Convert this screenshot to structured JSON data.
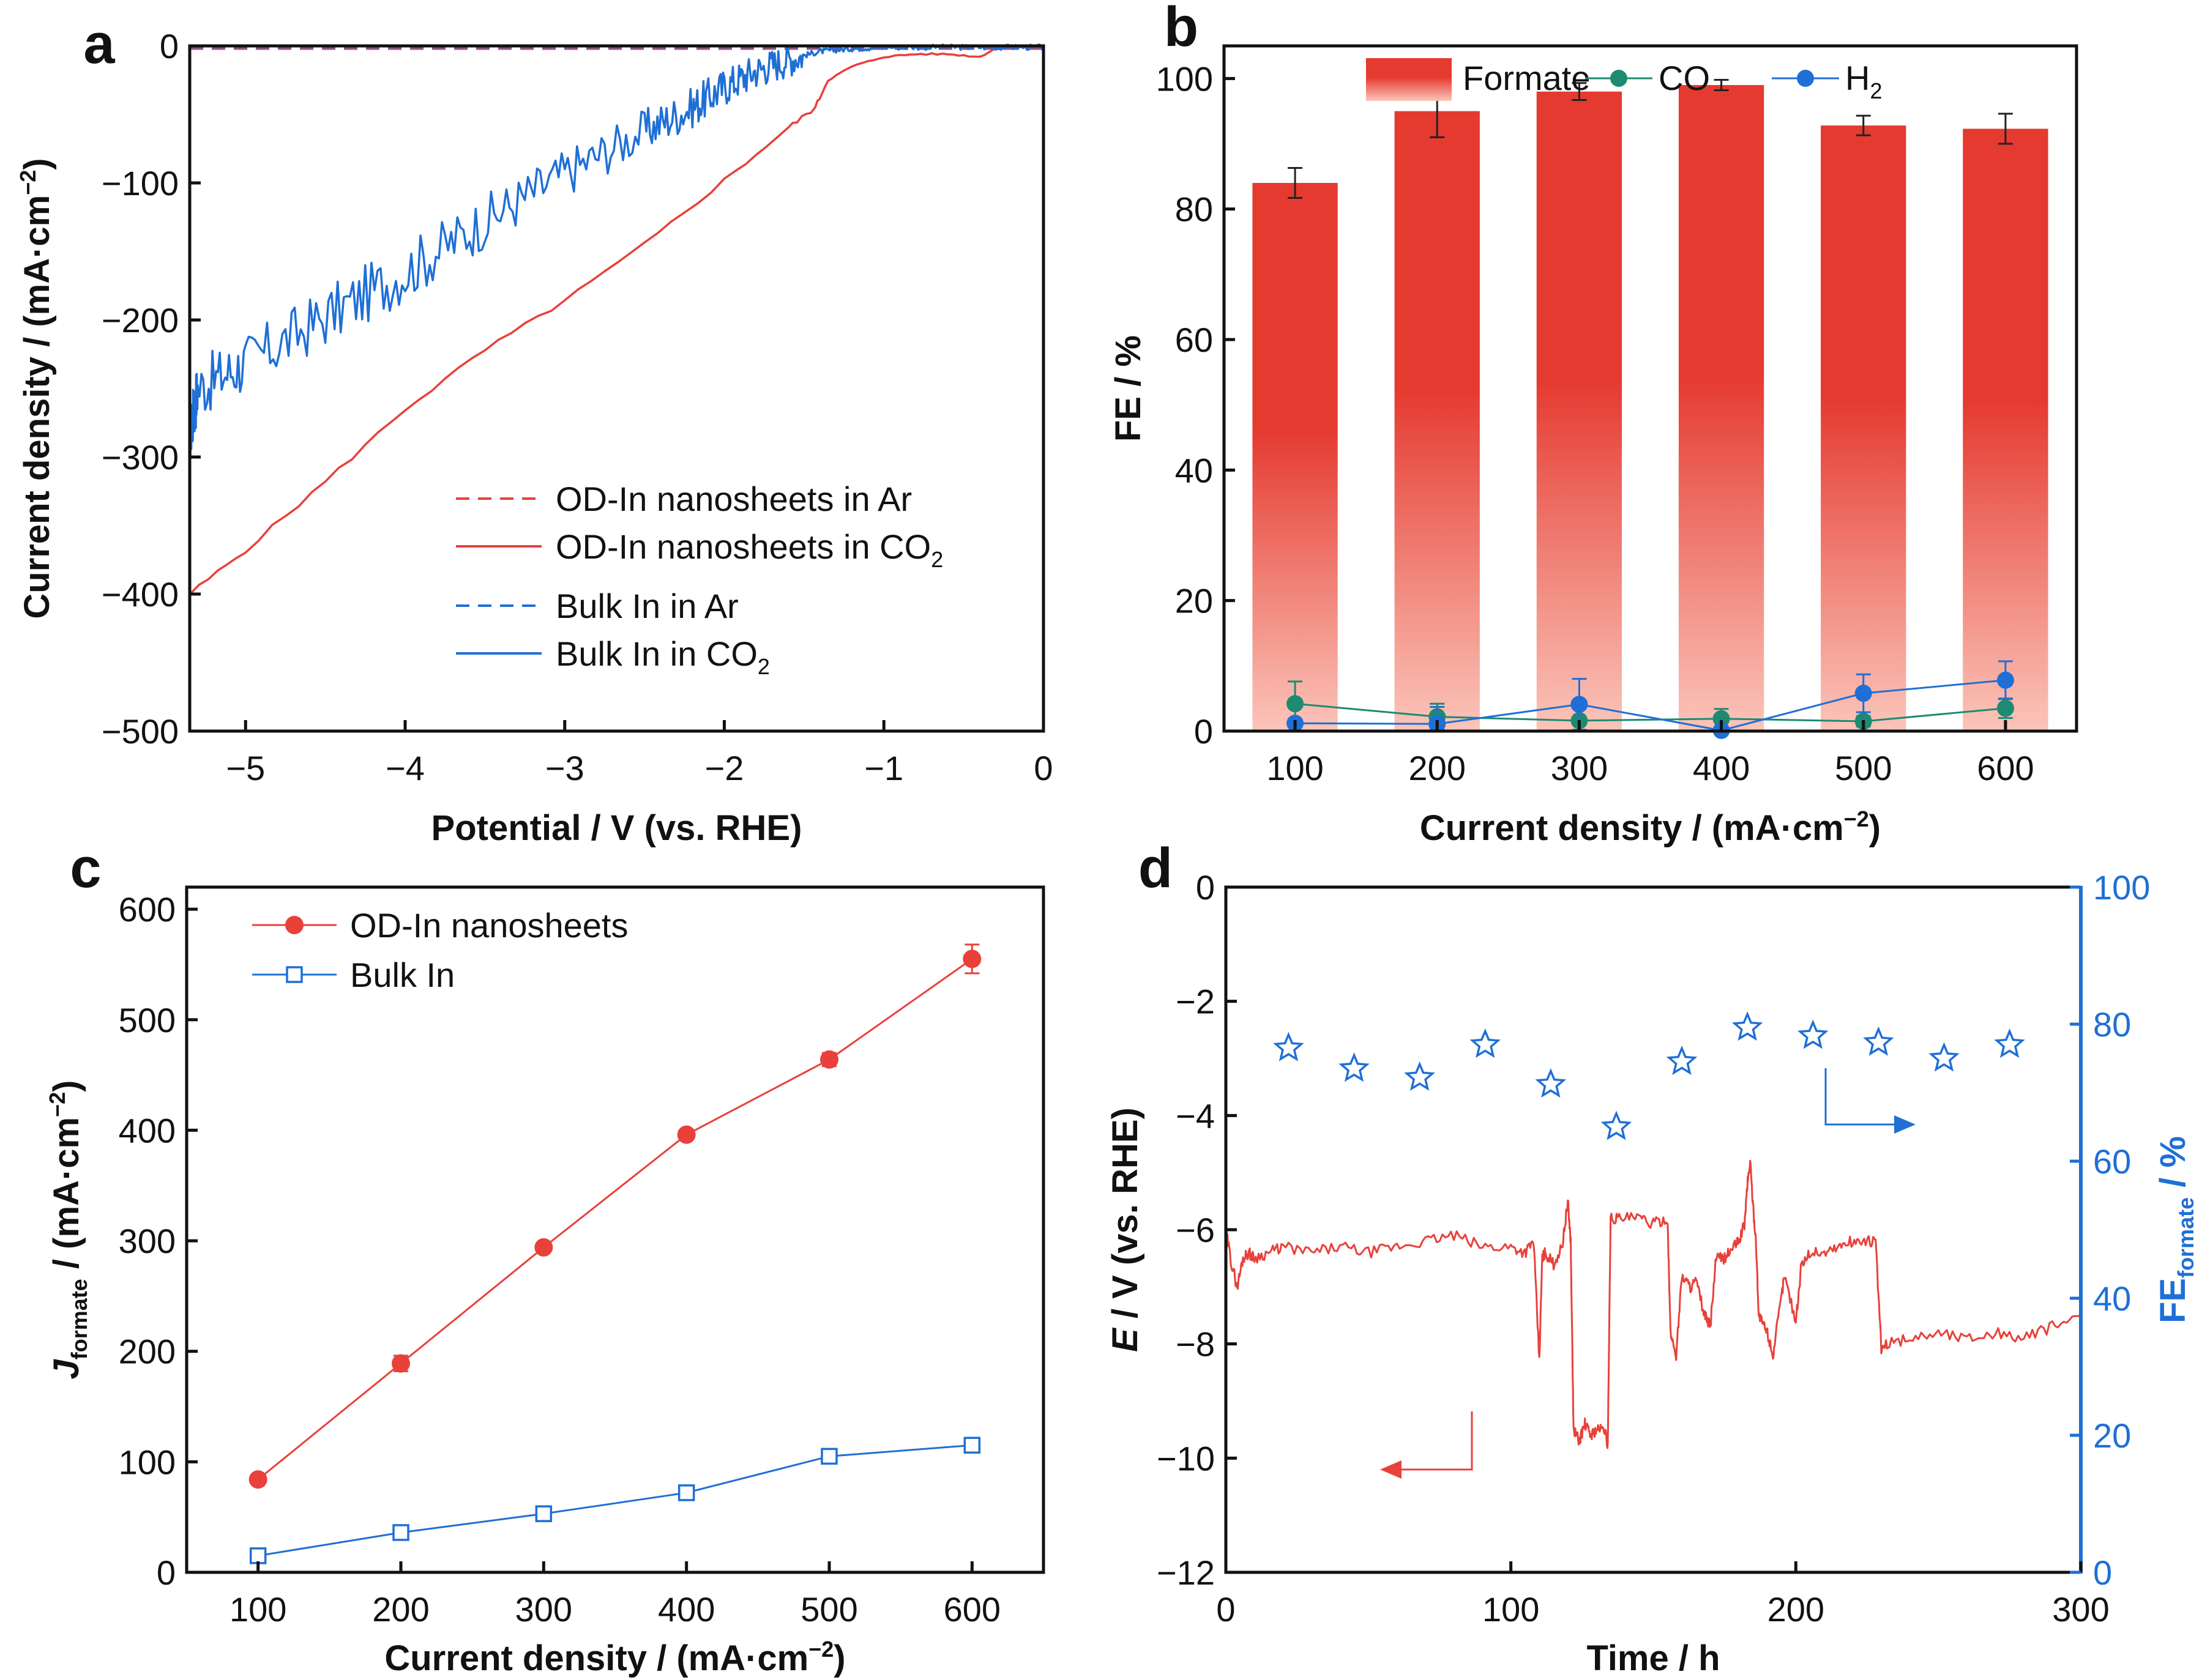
{
  "colors": {
    "red": "#e8413a",
    "blue": "#1f6fd6",
    "green": "#1e8a72",
    "axis": "#111111",
    "bar_top": "#e53a30",
    "bar_bottom": "#fbc5ba"
  },
  "panels": {
    "a": "a",
    "b": "b",
    "c": "c",
    "d": "d"
  },
  "chart_data": [
    {
      "panel": "a",
      "type": "line",
      "xlabel": "Potential / V (vs. RHE)",
      "ylabel": "Current density / (mA·cm",
      "ylabel_sup": "−2",
      "ylabel_close": ")",
      "xlim": [
        -5.35,
        0
      ],
      "ylim": [
        -500,
        0
      ],
      "xticks": [
        "−5",
        "−4",
        "−3",
        "−2",
        "−1",
        "0"
      ],
      "yticks": [
        "−500",
        "−400",
        "−300",
        "−200",
        "−100",
        "0"
      ],
      "xtick_values": [
        -5,
        -4,
        -3,
        -2,
        -1,
        0
      ],
      "ytick_values": [
        -500,
        -400,
        -300,
        -200,
        -100,
        0
      ],
      "legend": [
        {
          "main": "OD-In nanosheets in Ar",
          "sub": ""
        },
        {
          "main": "OD-In nanosheets in CO",
          "sub": "2"
        },
        {
          "main": "Bulk In in Ar",
          "sub": ""
        },
        {
          "main": "Bulk In in CO",
          "sub": "2"
        }
      ],
      "series": [
        {
          "name": "OD-In nanosheets in Ar",
          "style": "dashed",
          "color": "red",
          "x": [
            -5.35,
            0
          ],
          "y": [
            -2,
            -2
          ]
        },
        {
          "name": "OD-In nanosheets in CO2",
          "style": "solid",
          "color": "red",
          "x": [
            -5.35,
            -5.0,
            -4.5,
            -4.0,
            -3.5,
            -3.0,
            -2.5,
            -2.0,
            -1.6,
            -1.43,
            -1.35,
            -1.2,
            -1.0,
            -0.8,
            -0.6,
            -0.4,
            -0.3,
            -0.2,
            -0.1,
            0
          ],
          "y": [
            -400,
            -368,
            -318,
            -265,
            -222,
            -186,
            -145,
            -98,
            -60,
            -45,
            -25,
            -15,
            -8,
            -6,
            -6,
            -8,
            -2,
            -1,
            -1,
            -1
          ]
        },
        {
          "name": "Bulk In in Ar",
          "style": "dashed",
          "color": "blue",
          "x": [
            -5.35,
            0
          ],
          "y": [
            -1,
            -1
          ]
        },
        {
          "name": "Bulk In in CO2",
          "style": "solid",
          "color": "blue",
          "x": [
            -5.35,
            -5.3,
            -5.0,
            -4.5,
            -4.0,
            -3.5,
            -3.0,
            -2.5,
            -2.2,
            -2.0,
            -1.8,
            -1.6,
            -1.4,
            -1.2,
            -1.0,
            -0.6,
            -0.3,
            0
          ],
          "y": [
            -285,
            -250,
            -232,
            -198,
            -165,
            -128,
            -93,
            -62,
            -45,
            -30,
            -18,
            -10,
            -4,
            -2,
            -1,
            -1,
            -1,
            -1
          ]
        }
      ]
    },
    {
      "panel": "b",
      "type": "bar",
      "xlabel": "Current density / (mA·cm",
      "xlabel_sup": "−2",
      "xlabel_close": ")",
      "ylabel": "FE / %",
      "ylim": [
        0,
        105
      ],
      "yticks": [
        "0",
        "20",
        "40",
        "60",
        "80",
        "100"
      ],
      "ytick_values": [
        0,
        20,
        40,
        60,
        80,
        100
      ],
      "categories": [
        "100",
        "200",
        "300",
        "400",
        "500",
        "600"
      ],
      "legend": [
        {
          "main": "Formate",
          "sub": ""
        },
        {
          "main": "CO",
          "sub": ""
        },
        {
          "main": "H",
          "sub": "2"
        }
      ],
      "series": [
        {
          "name": "Formate",
          "values": [
            84,
            95,
            98,
            99,
            92.8,
            92.3
          ],
          "errors": [
            2.3,
            4,
            1.3,
            0.8,
            1.5,
            2.3
          ]
        },
        {
          "name": "CO",
          "values": [
            4.2,
            2.2,
            1.6,
            1.9,
            1.5,
            3.5
          ],
          "errors": [
            3.4,
            2,
            0.6,
            1.5,
            0.8,
            1.5
          ]
        },
        {
          "name": "H2",
          "values": [
            1.2,
            1.1,
            4.1,
            0.1,
            5.8,
            7.8
          ],
          "errors": [
            0.6,
            2.6,
            3.9,
            0.5,
            2.9,
            2.9
          ]
        }
      ]
    },
    {
      "panel": "c",
      "type": "line",
      "xlabel": "Current density / (mA·cm",
      "xlabel_sup": "−2",
      "xlabel_close": ")",
      "ylabel_main": "J",
      "ylabel_sub": "formate",
      "ylabel_rest": " / (mA·cm",
      "ylabel_sup": "−2",
      "ylabel_close": ")",
      "xlim": [
        50,
        650
      ],
      "ylim": [
        0,
        620
      ],
      "xticks": [
        "100",
        "200",
        "300",
        "400",
        "500",
        "600"
      ],
      "xtick_values": [
        100,
        200,
        300,
        400,
        500,
        600
      ],
      "yticks": [
        "0",
        "100",
        "200",
        "300",
        "400",
        "500",
        "600"
      ],
      "ytick_values": [
        0,
        100,
        200,
        300,
        400,
        500,
        600
      ],
      "legend": [
        {
          "main": "OD-In nanosheets",
          "sub": ""
        },
        {
          "main": "Bulk In",
          "sub": ""
        }
      ],
      "series": [
        {
          "name": "OD-In nanosheets",
          "x": [
            100,
            200,
            300,
            400,
            500,
            600
          ],
          "values": [
            84,
            189,
            294,
            396,
            464,
            555
          ],
          "errors": [
            3,
            7,
            4,
            3,
            6,
            13
          ]
        },
        {
          "name": "Bulk In",
          "x": [
            100,
            200,
            300,
            400,
            500,
            600
          ],
          "values": [
            15,
            36,
            53,
            72,
            105,
            115
          ],
          "errors": [
            5,
            4,
            4,
            4,
            3,
            5
          ]
        }
      ]
    },
    {
      "panel": "d",
      "type": "line",
      "xlabel": "Time / h",
      "ylabel_main": "E",
      "ylabel_rest": " / V (vs. RHE)",
      "y2label_main": "FE",
      "y2label_sub": "formate",
      "y2label_rest": " / %",
      "xlim": [
        0,
        300
      ],
      "ylim": [
        -12,
        0
      ],
      "y2lim": [
        0,
        100
      ],
      "xticks": [
        "0",
        "100",
        "200",
        "300"
      ],
      "xtick_values": [
        0,
        100,
        200,
        300
      ],
      "yticks": [
        "−12",
        "−10",
        "−8",
        "−6",
        "−4",
        "−2",
        "0"
      ],
      "ytick_values": [
        -12,
        -10,
        -8,
        -6,
        -4,
        -2,
        0
      ],
      "y2ticks": [
        "0",
        "20",
        "40",
        "60",
        "80",
        "100"
      ],
      "y2tick_values": [
        0,
        20,
        40,
        60,
        80,
        100
      ],
      "series": [
        {
          "name": "E",
          "x": [
            0,
            2,
            4,
            6,
            8,
            10,
            15,
            20,
            30,
            40,
            50,
            60,
            70,
            80,
            90,
            100,
            105,
            108,
            110,
            111,
            112,
            115,
            118,
            120,
            121,
            122,
            124,
            126,
            128,
            130,
            133,
            134,
            135,
            138,
            145,
            150,
            155,
            156,
            158,
            160,
            163,
            165,
            168,
            170,
            172,
            175,
            178,
            180,
            182,
            183,
            184,
            185,
            186,
            187,
            188,
            190,
            192,
            194,
            196,
            200,
            202,
            205,
            210,
            215,
            220,
            225,
            228,
            230,
            232,
            240,
            250,
            260,
            270,
            280,
            290,
            300
          ],
          "y": [
            -6.0,
            -6.6,
            -7.0,
            -6.5,
            -6.4,
            -6.5,
            -6.4,
            -6.3,
            -6.4,
            -6.3,
            -6.4,
            -6.3,
            -6.2,
            -6.1,
            -6.3,
            -6.3,
            -6.4,
            -6.2,
            -8.3,
            -6.5,
            -6.4,
            -6.6,
            -6.3,
            -5.5,
            -6.2,
            -9.5,
            -9.7,
            -9.4,
            -9.6,
            -9.5,
            -9.5,
            -9.8,
            -5.8,
            -5.8,
            -5.8,
            -5.9,
            -5.8,
            -7.8,
            -8.2,
            -6.8,
            -7.0,
            -6.9,
            -7.5,
            -7.7,
            -6.5,
            -6.5,
            -6.3,
            -6.2,
            -5.9,
            -5.2,
            -4.8,
            -5.6,
            -6.2,
            -7.5,
            -7.6,
            -7.8,
            -8.2,
            -7.5,
            -6.8,
            -7.6,
            -6.6,
            -6.4,
            -6.4,
            -6.3,
            -6.2,
            -6.2,
            -6.2,
            -8.1,
            -8.0,
            -7.9,
            -7.8,
            -7.9,
            -7.8,
            -7.9,
            -7.7,
            -7.5
          ]
        },
        {
          "name": "FE formate",
          "axis": "right",
          "x": [
            22,
            45,
            68,
            91,
            114,
            137,
            160,
            183,
            206,
            229,
            252,
            275
          ],
          "values": [
            76.5,
            73.5,
            72.2,
            77,
            71.2,
            65,
            74.5,
            79.5,
            78.3,
            77.3,
            75,
            77
          ]
        }
      ]
    }
  ]
}
